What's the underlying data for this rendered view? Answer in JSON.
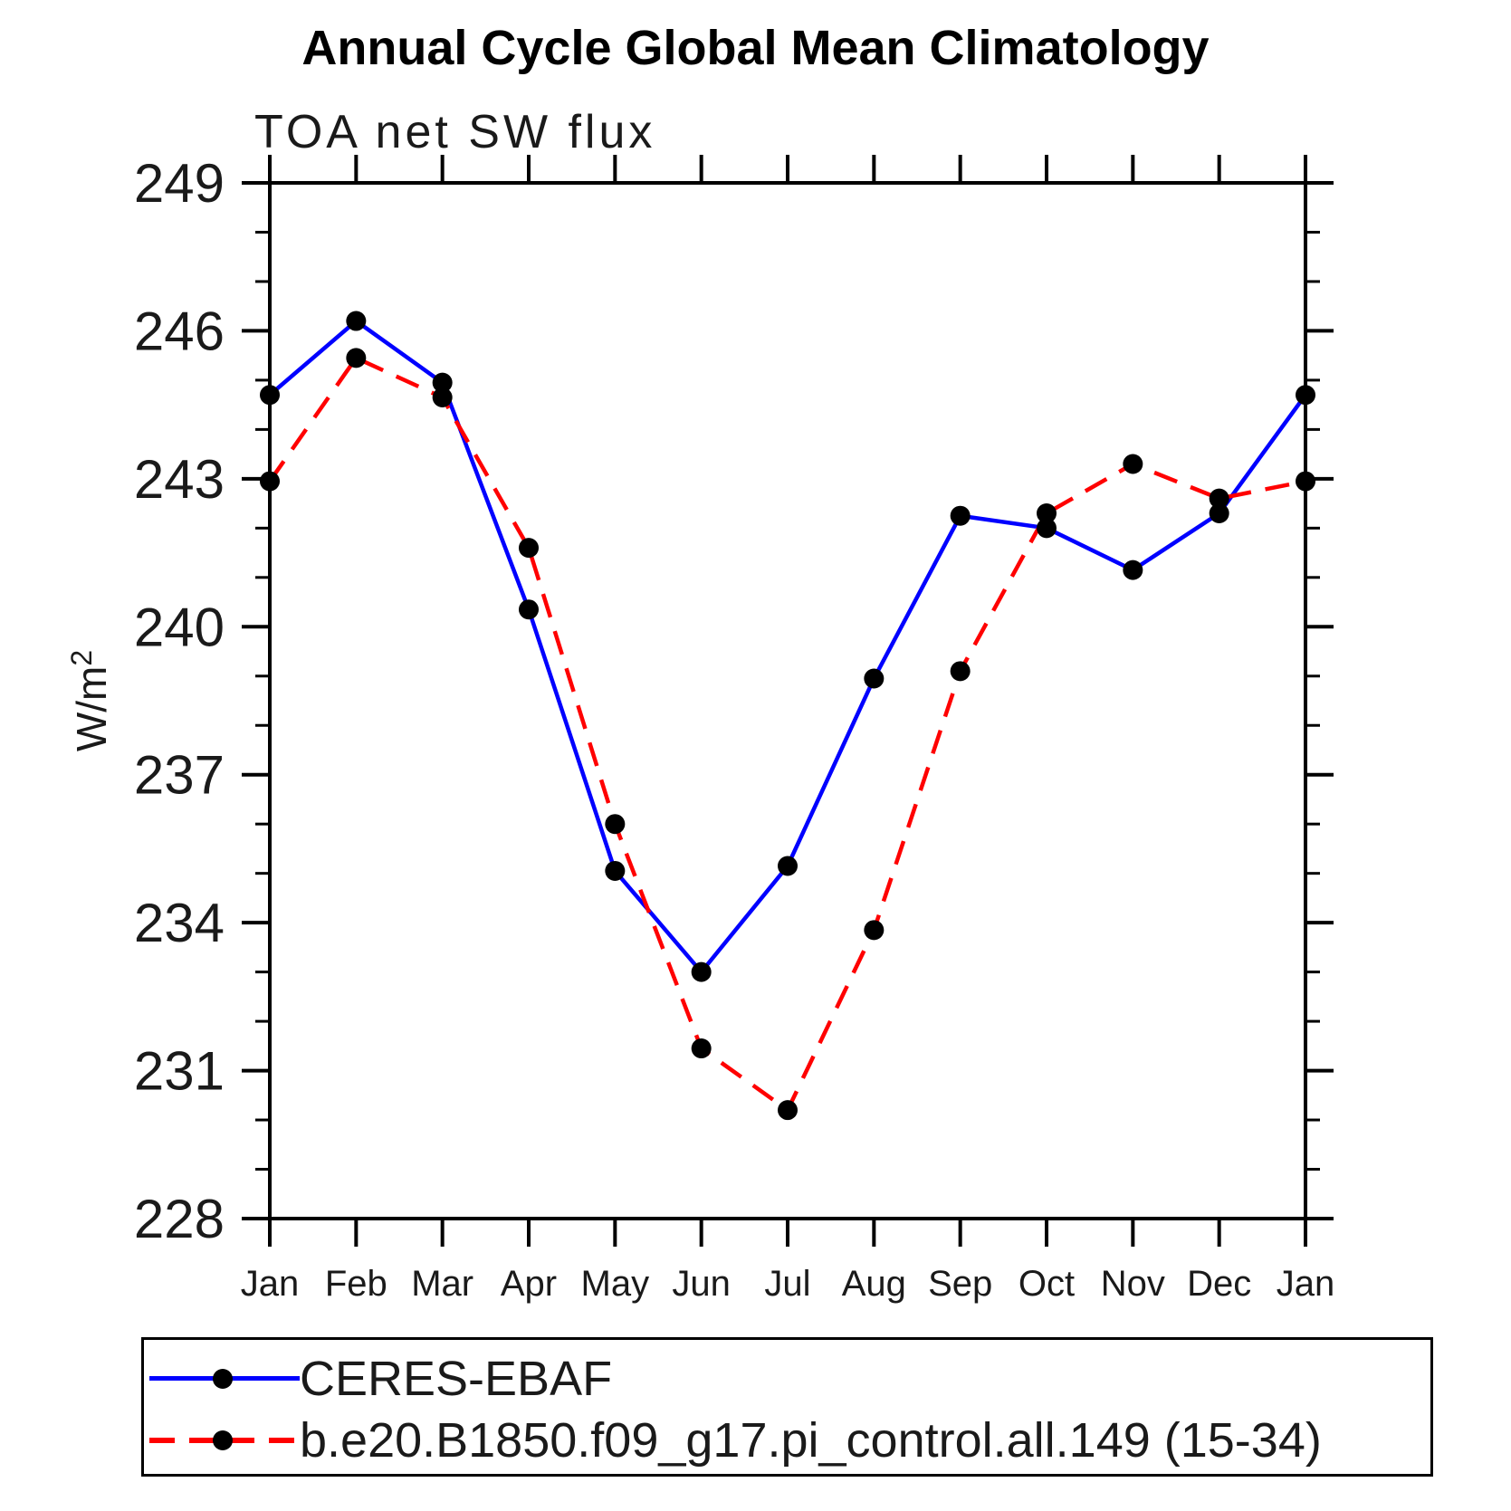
{
  "page": {
    "background": "#ffffff",
    "axis_color": "#000000",
    "text_color": "#1a1a1a"
  },
  "chart_data": {
    "type": "line",
    "title": "Annual Cycle Global Mean Climatology",
    "subtitle": "TOA net SW flux",
    "ylabel": {
      "base": "W/m",
      "exponent": "2"
    },
    "xlabel": "",
    "categories": [
      "Jan",
      "Feb",
      "Mar",
      "Apr",
      "May",
      "Jun",
      "Jul",
      "Aug",
      "Sep",
      "Oct",
      "Nov",
      "Dec",
      "Jan"
    ],
    "ylim": [
      228,
      249
    ],
    "ytick_step": 3,
    "yticks": [
      228,
      231,
      234,
      237,
      240,
      243,
      246,
      249
    ],
    "minor_tick_step": 1,
    "grid": false,
    "legend_position": "bottom-left",
    "marker": "circle",
    "marker_color": "#000000",
    "series": [
      {
        "name": "CERES-EBAF",
        "color": "#0000ff",
        "style": "solid",
        "values": [
          244.7,
          246.2,
          244.95,
          240.35,
          235.05,
          233.0,
          235.15,
          238.95,
          242.25,
          242.0,
          241.15,
          242.3,
          244.7
        ]
      },
      {
        "name": "b.e20.B1850.f09_g17.pi_control.all.149 (15-34)",
        "color": "#ff0000",
        "style": "dashed",
        "values": [
          242.95,
          245.45,
          244.65,
          241.6,
          236.0,
          231.45,
          230.2,
          233.85,
          239.1,
          242.3,
          243.3,
          242.6,
          242.95
        ]
      }
    ]
  }
}
